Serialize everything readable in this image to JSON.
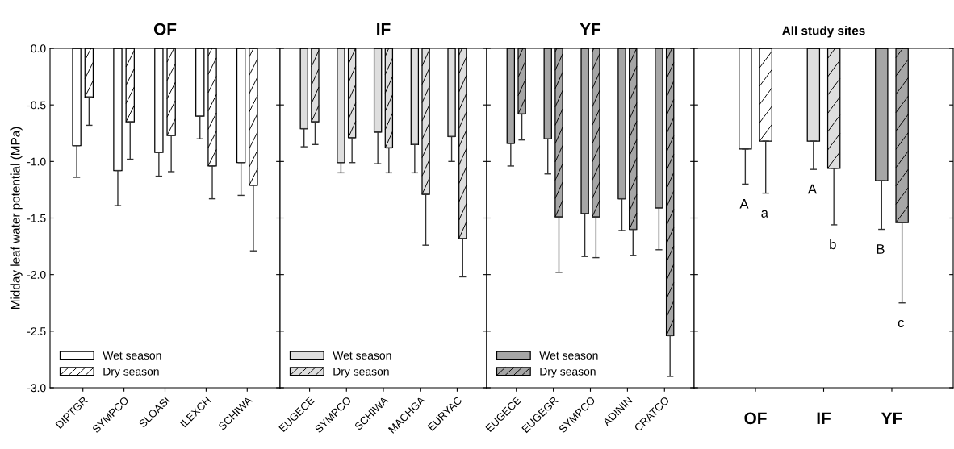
{
  "chart_data": [
    {
      "type": "bar",
      "title": "OF",
      "ylabel": "Midday leaf water potential (MPa)",
      "categories": [
        "DIPTGR",
        "SYMPCO",
        "SLOASI",
        "ILEXCH",
        "SCHIWA"
      ],
      "series": [
        {
          "name": "Wet season",
          "color": "#ffffff",
          "values": [
            -0.86,
            -1.08,
            -0.92,
            -0.6,
            -1.01
          ],
          "errors": [
            [
              -1.14,
              -0.86
            ],
            [
              -1.39,
              -1.08
            ],
            [
              -1.13,
              -0.92
            ],
            [
              -0.8,
              -0.6
            ],
            [
              -1.3,
              -1.01
            ]
          ]
        },
        {
          "name": "Dry season",
          "color": "#ffffff",
          "values": [
            -0.43,
            -0.65,
            -0.77,
            -1.04,
            -1.21
          ],
          "errors": [
            [
              -0.68,
              -0.43
            ],
            [
              -0.98,
              -0.65
            ],
            [
              -1.09,
              -0.77
            ],
            [
              -1.33,
              -1.04
            ],
            [
              -1.79,
              -1.21
            ]
          ]
        }
      ],
      "ylim": [
        -3,
        0
      ],
      "yticks": [
        {
          "value": -3,
          "label": "-3.0"
        },
        {
          "value": -2.5,
          "label": "-2.5"
        },
        {
          "value": -2,
          "label": "-2.0"
        },
        {
          "value": -1.5,
          "label": "-1.5"
        },
        {
          "value": -1,
          "label": "-1.0"
        },
        {
          "value": -0.5,
          "label": "-0.5"
        },
        {
          "value": 0,
          "label": "0.0"
        }
      ],
      "legend": "bottom left",
      "grid": false
    },
    {
      "type": "bar",
      "title": "IF",
      "categories": [
        "EUGECE",
        "SYMPCO",
        "SCHIWA",
        "MACHGA",
        "EURYAC"
      ],
      "series": [
        {
          "name": "Wet season",
          "color": "#dedede",
          "values": [
            -0.71,
            -1.01,
            -0.74,
            -0.85,
            -0.78
          ],
          "errors": [
            [
              -0.87,
              -0.71
            ],
            [
              -1.1,
              -1.01
            ],
            [
              -1.02,
              -0.74
            ],
            [
              -1.1,
              -0.85
            ],
            [
              -1.0,
              -0.78
            ]
          ]
        },
        {
          "name": "Dry season",
          "color": "#dedede",
          "values": [
            -0.65,
            -0.79,
            -0.88,
            -1.29,
            -1.68
          ],
          "errors": [
            [
              -0.85,
              -0.65
            ],
            [
              -1.01,
              -0.79
            ],
            [
              -1.1,
              -0.88
            ],
            [
              -1.74,
              -1.29
            ],
            [
              -2.02,
              -1.68
            ]
          ]
        }
      ],
      "ylim": [
        -3,
        0
      ],
      "yticks": [
        -3,
        -2.5,
        -2,
        -1.5,
        -1,
        -0.5,
        0
      ],
      "tick_labels": "x",
      "legend": "bottom left",
      "grid": false
    },
    {
      "type": "bar",
      "title": "YF",
      "categories": [
        "EUGECE",
        "EUGEGR",
        "SYMPCO",
        "ADININ",
        "CRATCO"
      ],
      "series": [
        {
          "name": "Wet season",
          "color": "#a6a6a6",
          "values": [
            -0.84,
            -0.8,
            -1.46,
            -1.33,
            -1.41
          ],
          "errors": [
            [
              -1.04,
              -0.84
            ],
            [
              -1.11,
              -0.8
            ],
            [
              -1.84,
              -1.46
            ],
            [
              -1.61,
              -1.33
            ],
            [
              -1.78,
              -1.41
            ]
          ]
        },
        {
          "name": "Dry season",
          "color": "#a6a6a6",
          "values": [
            -0.58,
            -1.49,
            -1.49,
            -1.6,
            -2.54
          ],
          "errors": [
            [
              -0.81,
              -0.58
            ],
            [
              -1.98,
              -1.49
            ],
            [
              -1.85,
              -1.49
            ],
            [
              -1.83,
              -1.6
            ],
            [
              -2.9,
              -2.54
            ]
          ]
        }
      ],
      "ylim": [
        -3,
        0
      ],
      "yticks": [
        -3,
        -2.5,
        -2,
        -1.5,
        -1,
        -0.5,
        0
      ],
      "tick_labels": "x",
      "legend": "bottom left",
      "grid": false
    },
    {
      "type": "bar",
      "title": "All study sites",
      "categories": [
        "OF",
        "IF",
        "YF"
      ],
      "series": [
        {
          "colors": [
            "#ffffff",
            "#dedede",
            "#a6a6a6"
          ],
          "values": [
            -0.89,
            -0.82,
            -1.17
          ],
          "errors": [
            [
              -1.2,
              -0.89
            ],
            [
              -1.07,
              -0.82
            ],
            [
              -1.6,
              -1.17
            ]
          ]
        },
        {
          "colors": [
            "#ffffff",
            "#dedede",
            "#a6a6a6"
          ],
          "values": [
            -0.82,
            -1.06,
            -1.54
          ],
          "errors": [
            [
              -1.28,
              -0.82
            ],
            [
              -1.56,
              -1.06
            ],
            [
              -2.25,
              -1.54
            ]
          ]
        }
      ],
      "annotations": [
        "A",
        "a",
        "A",
        "b",
        "B",
        "c"
      ],
      "ylim": [
        -3,
        0
      ],
      "yticks": [
        -3,
        -2.5,
        -2,
        -1.5,
        -1,
        -0.5,
        0
      ],
      "tick_labels": "x",
      "grid": false
    }
  ]
}
